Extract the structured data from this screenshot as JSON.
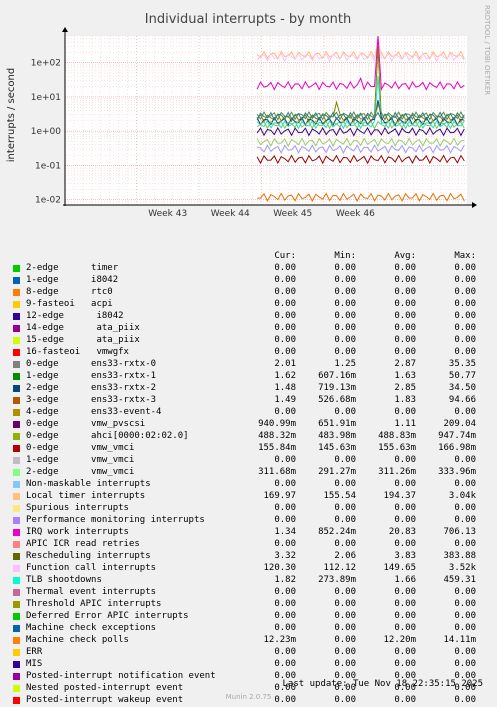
{
  "chart_data": {
    "type": "line",
    "title": "Individual interrupts - by month",
    "ylabel": "interrupts / second",
    "yscale": "log",
    "ylim": [
      0.007,
      600
    ],
    "yticks": [
      0.01,
      0.1,
      1,
      10,
      100
    ],
    "ytick_labels": [
      "1e-02",
      "1e-01",
      "1e+00",
      "1e+01",
      "1e+02"
    ],
    "x_range_days": 45,
    "xticks": [
      {
        "label": "Week 43",
        "day": 8
      },
      {
        "label": "Week 44",
        "day": 15
      },
      {
        "label": "Week 45",
        "day": 22
      },
      {
        "label": "Week 46",
        "day": 29
      }
    ],
    "data_start_day": 21.5,
    "grid": true,
    "series": [
      {
        "name": "Local timer interrupts",
        "color": "#FFB870",
        "value": 170,
        "spikes": [
          [
            35.0,
            290
          ]
        ]
      },
      {
        "name": "Function call interrupts",
        "color": "#FFC0F0",
        "value": 150,
        "spikes": [
          [
            35.0,
            2500
          ]
        ]
      },
      {
        "name": "IRQ work interrupts",
        "color": "#E800C0",
        "value": 22,
        "spikes": [
          [
            33.2,
            35
          ],
          [
            35.0,
            706
          ]
        ]
      },
      {
        "name": "Rescheduling interrupts",
        "color": "#808000",
        "value": 2.5,
        "spikes": [
          [
            30.5,
            7
          ],
          [
            35.0,
            300
          ]
        ]
      },
      {
        "name": "TLB shootdowns",
        "color": "#20E0C0",
        "value": 1.6,
        "spikes": [
          [
            35.0,
            40
          ]
        ]
      },
      {
        "name": "ens33-rxtx-3",
        "color": "#204060",
        "value": 2.0,
        "spikes": [
          [
            35.0,
            8
          ]
        ]
      },
      {
        "name": "ens33-rxtx-0",
        "color": "#4E8C4E",
        "value": 2.9,
        "spikes": [
          [
            35.0,
            6
          ]
        ]
      },
      {
        "name": "ens33-rxtx-1",
        "color": "#66CC66",
        "value": 1.6,
        "spikes": []
      },
      {
        "name": "ens33-rxtx-2",
        "color": "#2F7F7F",
        "value": 2.8,
        "spikes": []
      },
      {
        "name": "vmw_pvscsi",
        "color": "#400080",
        "value": 1.0,
        "spikes": []
      },
      {
        "name": "vmw_vmci",
        "color": "#9999FF",
        "value": 0.31,
        "spikes": []
      },
      {
        "name": "ahci[0000:02:02.0]",
        "color": "#99CC66",
        "value": 0.49,
        "spikes": []
      },
      {
        "name": "vmw_vmci 0-edge",
        "color": "#990000",
        "value": 0.156,
        "spikes": []
      },
      {
        "name": "Machine check polls",
        "color": "#E87000",
        "value": 0.0122,
        "spikes": []
      }
    ]
  },
  "legend": {
    "headers": {
      "cur": "Cur:",
      "min": "Min:",
      "avg": "Avg:",
      "max": "Max:"
    },
    "rows": [
      {
        "color": "#00CC00",
        "label": "2-edge      timer",
        "cur": "0.00",
        "min": "0.00",
        "avg": "0.00",
        "max": "0.00"
      },
      {
        "color": "#0066B3",
        "label": "1-edge      i8042",
        "cur": "0.00",
        "min": "0.00",
        "avg": "0.00",
        "max": "0.00"
      },
      {
        "color": "#FF8000",
        "label": "8-edge      rtc0",
        "cur": "0.00",
        "min": "0.00",
        "avg": "0.00",
        "max": "0.00"
      },
      {
        "color": "#FFCC00",
        "label": "9-fasteoi   acpi",
        "cur": "0.00",
        "min": "0.00",
        "avg": "0.00",
        "max": "0.00"
      },
      {
        "color": "#330099",
        "label": "12-edge      i8042",
        "cur": "0.00",
        "min": "0.00",
        "avg": "0.00",
        "max": "0.00"
      },
      {
        "color": "#990099",
        "label": "14-edge      ata_piix",
        "cur": "0.00",
        "min": "0.00",
        "avg": "0.00",
        "max": "0.00"
      },
      {
        "color": "#CCFF00",
        "label": "15-edge      ata_piix",
        "cur": "0.00",
        "min": "0.00",
        "avg": "0.00",
        "max": "0.00"
      },
      {
        "color": "#FF0000",
        "label": "16-fasteoi   vmwgfx",
        "cur": "0.00",
        "min": "0.00",
        "avg": "0.00",
        "max": "0.00"
      },
      {
        "color": "#808080",
        "label": "0-edge      ens33-rxtx-0",
        "cur": "2.01",
        "min": "1.25",
        "avg": "2.87",
        "max": "35.35"
      },
      {
        "color": "#008F00",
        "label": "1-edge      ens33-rxtx-1",
        "cur": "1.62",
        "min": "607.16m",
        "avg": "1.63",
        "max": "50.77"
      },
      {
        "color": "#00487D",
        "label": "2-edge      ens33-rxtx-2",
        "cur": "1.48",
        "min": "719.13m",
        "avg": "2.85",
        "max": "34.50"
      },
      {
        "color": "#B35A00",
        "label": "3-edge      ens33-rxtx-3",
        "cur": "1.49",
        "min": "526.68m",
        "avg": "1.83",
        "max": "94.66"
      },
      {
        "color": "#B38F00",
        "label": "4-edge      ens33-event-4",
        "cur": "0.00",
        "min": "0.00",
        "avg": "0.00",
        "max": "0.00"
      },
      {
        "color": "#6B006B",
        "label": "0-edge      vmw_pvscsi",
        "cur": "940.99m",
        "min": "651.91m",
        "avg": "1.11",
        "max": "209.04"
      },
      {
        "color": "#8FB300",
        "label": "0-edge      ahci[0000:02:02.0]",
        "cur": "488.32m",
        "min": "483.98m",
        "avg": "488.83m",
        "max": "947.74m"
      },
      {
        "color": "#B30000",
        "label": "0-edge      vmw_vmci",
        "cur": "155.84m",
        "min": "145.63m",
        "avg": "155.63m",
        "max": "166.98m"
      },
      {
        "color": "#BEBEBE",
        "label": "1-edge      vmw_vmci",
        "cur": "0.00",
        "min": "0.00",
        "avg": "0.00",
        "max": "0.00"
      },
      {
        "color": "#80FF80",
        "label": "2-edge      vmw_vmci",
        "cur": "311.68m",
        "min": "291.27m",
        "avg": "311.26m",
        "max": "333.96m"
      },
      {
        "color": "#80C9FF",
        "label": "Non-maskable interrupts",
        "cur": "0.00",
        "min": "0.00",
        "avg": "0.00",
        "max": "0.00"
      },
      {
        "color": "#FFC080",
        "label": "Local timer interrupts",
        "cur": "169.97",
        "min": "155.54",
        "avg": "194.37",
        "max": "3.04k"
      },
      {
        "color": "#FFE680",
        "label": "Spurious interrupts",
        "cur": "0.00",
        "min": "0.00",
        "avg": "0.00",
        "max": "0.00"
      },
      {
        "color": "#AA80FF",
        "label": "Performance monitoring interrupts",
        "cur": "0.00",
        "min": "0.00",
        "avg": "0.00",
        "max": "0.00"
      },
      {
        "color": "#EE00CC",
        "label": "IRQ work interrupts",
        "cur": "1.34",
        "min": "852.24m",
        "avg": "20.83",
        "max": "706.13"
      },
      {
        "color": "#FF8080",
        "label": "APIC ICR read retries",
        "cur": "0.00",
        "min": "0.00",
        "avg": "0.00",
        "max": "0.00"
      },
      {
        "color": "#666600",
        "label": "Rescheduling interrupts",
        "cur": "3.32",
        "min": "2.06",
        "avg": "3.83",
        "max": "383.88"
      },
      {
        "color": "#FFBFFF",
        "label": "Function call interrupts",
        "cur": "120.30",
        "min": "112.12",
        "avg": "149.65",
        "max": "3.52k"
      },
      {
        "color": "#00FFCC",
        "label": "TLB shootdowns",
        "cur": "1.82",
        "min": "273.89m",
        "avg": "1.66",
        "max": "459.31"
      },
      {
        "color": "#CC6699",
        "label": "Thermal event interrupts",
        "cur": "0.00",
        "min": "0.00",
        "avg": "0.00",
        "max": "0.00"
      },
      {
        "color": "#999900",
        "label": "Threshold APIC interrupts",
        "cur": "0.00",
        "min": "0.00",
        "avg": "0.00",
        "max": "0.00"
      },
      {
        "color": "#00CC00",
        "label": "Deferred Error APIC interrupts",
        "cur": "0.00",
        "min": "0.00",
        "avg": "0.00",
        "max": "0.00"
      },
      {
        "color": "#0066B3",
        "label": "Machine check exceptions",
        "cur": "0.00",
        "min": "0.00",
        "avg": "0.00",
        "max": "0.00"
      },
      {
        "color": "#FF8000",
        "label": "Machine check polls",
        "cur": "12.23m",
        "min": "0.00",
        "avg": "12.20m",
        "max": "14.11m"
      },
      {
        "color": "#FFCC00",
        "label": "ERR",
        "cur": "0.00",
        "min": "0.00",
        "avg": "0.00",
        "max": "0.00"
      },
      {
        "color": "#330099",
        "label": "MIS",
        "cur": "0.00",
        "min": "0.00",
        "avg": "0.00",
        "max": "0.00"
      },
      {
        "color": "#990099",
        "label": "Posted-interrupt notification event",
        "cur": "0.00",
        "min": "0.00",
        "avg": "0.00",
        "max": "0.00"
      },
      {
        "color": "#CCFF00",
        "label": "Nested posted-interrupt event",
        "cur": "0.00",
        "min": "0.00",
        "avg": "0.00",
        "max": "0.00"
      },
      {
        "color": "#FF0000",
        "label": "Posted-interrupt wakeup event",
        "cur": "0.00",
        "min": "0.00",
        "avg": "0.00",
        "max": "0.00"
      }
    ]
  },
  "side_text": "RRDTOOL / TOBI OETIKER",
  "last_update": "Last update: Tue Nov 18 22:35:15 2025",
  "version": "Munin 2.0.75"
}
